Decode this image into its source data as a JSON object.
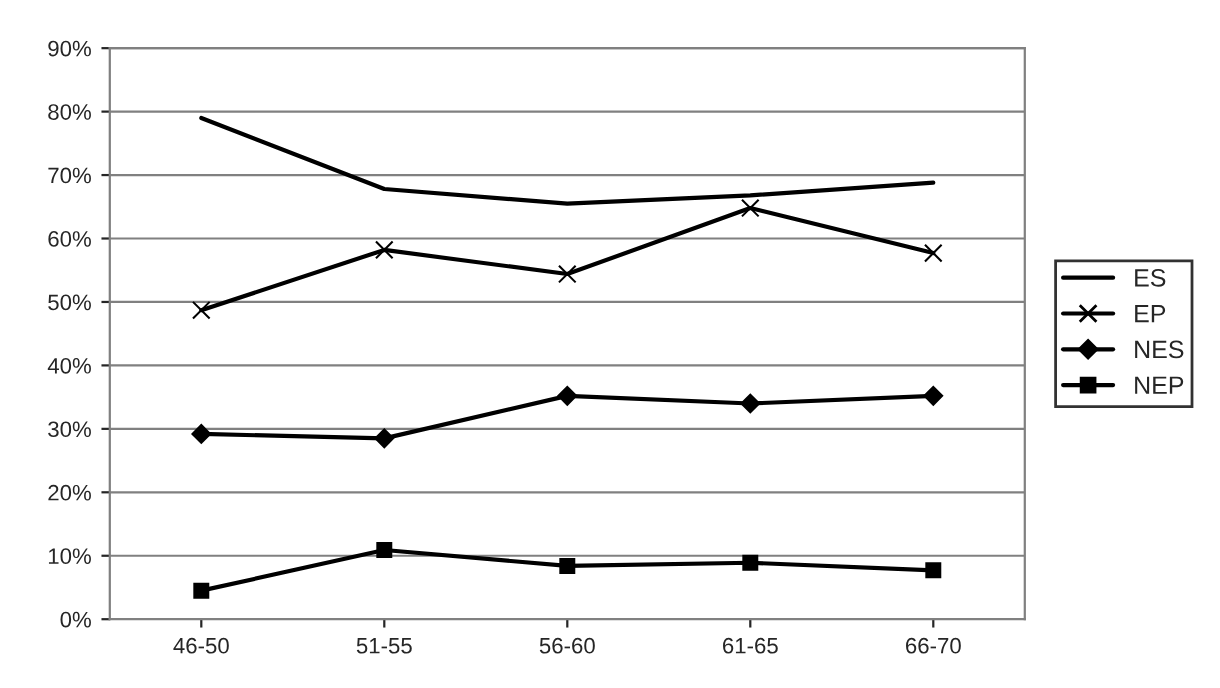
{
  "chart_data": {
    "type": "line",
    "categories": [
      "46-50",
      "51-55",
      "56-60",
      "61-65",
      "66-70"
    ],
    "series": [
      {
        "name": "ES",
        "color": "#000000",
        "marker": "none",
        "values": [
          79,
          67.8,
          65.5,
          66.8,
          68.8
        ]
      },
      {
        "name": "EP",
        "color": "#000000",
        "marker": "cross",
        "values": [
          48.7,
          58.2,
          54.4,
          64.8,
          57.7
        ]
      },
      {
        "name": "NES",
        "color": "#000000",
        "marker": "diamond",
        "values": [
          29.2,
          28.5,
          35.2,
          34,
          35.2
        ]
      },
      {
        "name": "NEP",
        "color": "#000000",
        "marker": "square",
        "values": [
          4.5,
          10.9,
          8.4,
          8.9,
          7.7
        ]
      }
    ],
    "ylim": [
      0,
      90
    ],
    "yticks": [
      {
        "value": 0,
        "label": "0%"
      },
      {
        "value": 10,
        "label": "10%"
      },
      {
        "value": 20,
        "label": "20%"
      },
      {
        "value": 30,
        "label": "30%"
      },
      {
        "value": 40,
        "label": "40%"
      },
      {
        "value": 50,
        "label": "50%"
      },
      {
        "value": 60,
        "label": "60%"
      },
      {
        "value": 70,
        "label": "70%"
      },
      {
        "value": 80,
        "label": "80%"
      },
      {
        "value": 90,
        "label": "90%"
      }
    ],
    "grid": "y",
    "legend": "right",
    "line_style": "solid"
  }
}
